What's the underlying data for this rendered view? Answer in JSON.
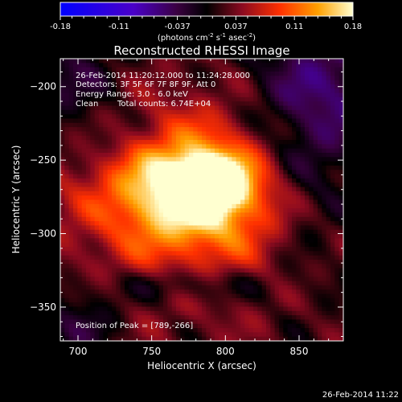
{
  "chart_data": {
    "type": "heatmap",
    "title": "Reconstructed RHESSI Image",
    "xlabel": "Heliocentric X (arcsec)",
    "ylabel": "Heliocentric Y (arcsec)",
    "xlim": [
      688,
      880
    ],
    "ylim": [
      -373,
      -181
    ],
    "x_ticks": [
      700,
      750,
      800,
      850
    ],
    "y_ticks": [
      -200,
      -250,
      -300,
      -350
    ],
    "colorbar": {
      "range": [
        -0.18,
        0.18
      ],
      "ticks": [
        "-0.18",
        "-0.11",
        "-0.037",
        "0.037",
        "0.11",
        "0.18"
      ],
      "label_main": "(photons cm",
      "label_exp1": "-2",
      "label_mid": " s",
      "label_exp2": "-1",
      "label_end": " asec",
      "label_exp3": "-2",
      "label_close": ")"
    },
    "annotations": {
      "time_range": "26-Feb-2014 11:20:12.000 to 11:24:28.000",
      "detectors": "Detectors: 3F 5F 6F 7F 8F 9F, Att 0",
      "energy": "Energy Range: 3.0 - 6.0 keV",
      "clean": "Clean",
      "counts": "Total counts: 6.74E+04",
      "peak": "Position of Peak = [789,-266]"
    },
    "peak": {
      "x": 789,
      "y": -266
    },
    "footer_timestamp": "26-Feb-2014 11:22"
  }
}
